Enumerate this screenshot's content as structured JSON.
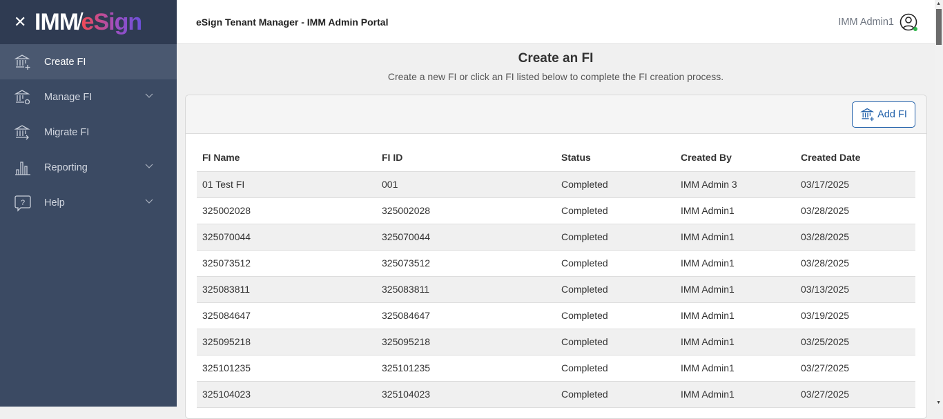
{
  "brand": {
    "logo_left": "IMM",
    "logo_right": "eSign"
  },
  "sidebar": {
    "items": [
      {
        "label": "Create FI",
        "icon": "bank-plus-icon",
        "active": true,
        "expandable": false
      },
      {
        "label": "Manage FI",
        "icon": "bank-gear-icon",
        "expandable": true
      },
      {
        "label": "Migrate FI",
        "icon": "bank-arrow-icon",
        "expandable": false
      },
      {
        "label": "Reporting",
        "icon": "bar-chart-icon",
        "expandable": true
      },
      {
        "label": "Help",
        "icon": "help-bubble-icon",
        "expandable": true
      }
    ]
  },
  "header": {
    "title": "eSign Tenant Manager - IMM Admin Portal",
    "user": "IMM Admin1",
    "status_color": "#2fb64a"
  },
  "page": {
    "title": "Create an FI",
    "subtitle": "Create a new FI or click an FI listed below to complete the FI creation process.",
    "add_button": "Add FI"
  },
  "table": {
    "columns": [
      "FI Name",
      "FI ID",
      "Status",
      "Created By",
      "Created Date"
    ],
    "rows": [
      [
        "01 Test FI",
        "001",
        "Completed",
        "IMM Admin 3",
        "03/17/2025"
      ],
      [
        "325002028",
        "325002028",
        "Completed",
        "IMM Admin1",
        "03/28/2025"
      ],
      [
        "325070044",
        "325070044",
        "Completed",
        "IMM Admin1",
        "03/28/2025"
      ],
      [
        "325073512",
        "325073512",
        "Completed",
        "IMM Admin1",
        "03/28/2025"
      ],
      [
        "325083811",
        "325083811",
        "Completed",
        "IMM Admin1",
        "03/13/2025"
      ],
      [
        "325084647",
        "325084647",
        "Completed",
        "IMM Admin1",
        "03/19/2025"
      ],
      [
        "325095218",
        "325095218",
        "Completed",
        "IMM Admin1",
        "03/25/2025"
      ],
      [
        "325101235",
        "325101235",
        "Completed",
        "IMM Admin1",
        "03/27/2025"
      ],
      [
        "325104023",
        "325104023",
        "Completed",
        "IMM Admin1",
        "03/27/2025"
      ]
    ]
  }
}
